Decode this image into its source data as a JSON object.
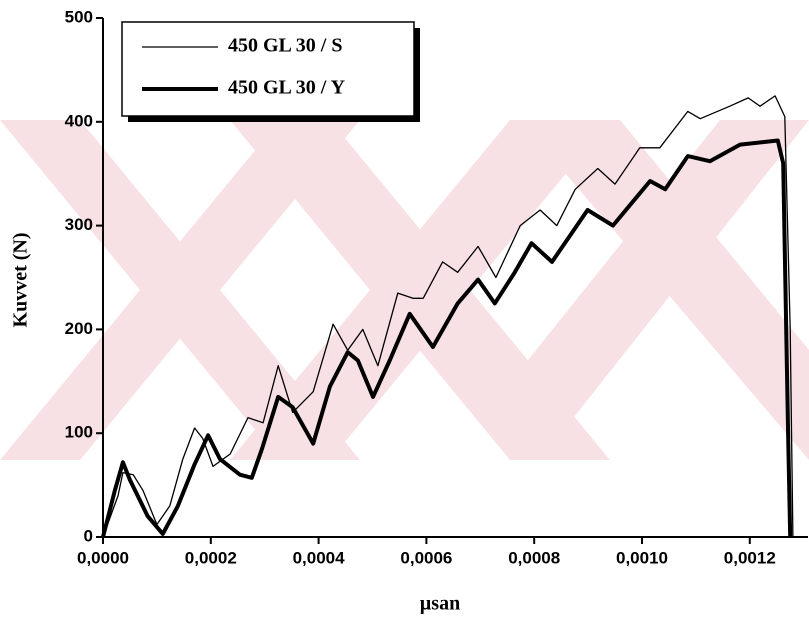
{
  "chart_data": {
    "type": "line",
    "y_label": "Kuvvet (N)",
    "x_label": "µsan",
    "xlim": [
      0,
      0.001308
    ],
    "ylim": [
      0,
      500
    ],
    "xticks": [
      {
        "value": 0,
        "label": "0,0000"
      },
      {
        "value": 0.0002,
        "label": "0,0002"
      },
      {
        "value": 0.0004,
        "label": "0,0004"
      },
      {
        "value": 0.0006,
        "label": "0,0006"
      },
      {
        "value": 0.0008,
        "label": "0,0008"
      },
      {
        "value": 0.001,
        "label": "0,0010"
      },
      {
        "value": 0.0012,
        "label": "0,0012"
      }
    ],
    "yticks": [
      0,
      100,
      200,
      300,
      400,
      500
    ],
    "legend": "top-left",
    "series": [
      {
        "name": "450 GL 30 / S",
        "color": "#000000",
        "width": 1.3,
        "x": [
          0,
          2.8e-05,
          3.7e-05,
          5.6e-05,
          7.4e-05,
          0.0001,
          0.000124,
          0.000148,
          0.00017,
          0.000185,
          0.000204,
          0.000236,
          0.000269,
          0.000297,
          0.000325,
          0.000352,
          0.00039,
          0.000427,
          0.000454,
          0.000482,
          0.00051,
          0.000547,
          0.000575,
          0.000594,
          0.00063,
          0.000658,
          0.000696,
          0.000729,
          0.000774,
          0.000811,
          0.000842,
          0.000876,
          0.000918,
          0.00095,
          0.000996,
          0.001033,
          0.001085,
          0.001108,
          0.001163,
          0.001197,
          0.001219,
          0.001247,
          0.001265,
          0.001275,
          0.00128
        ],
        "values": [
          0,
          40,
          62,
          60,
          45,
          12,
          30,
          75,
          105,
          95,
          68,
          80,
          115,
          110,
          165,
          120,
          140,
          205,
          180,
          200,
          165,
          235,
          230,
          230,
          265,
          255,
          280,
          250,
          300,
          315,
          300,
          335,
          355,
          340,
          375,
          375,
          410,
          403,
          415,
          423,
          415,
          425,
          405,
          200,
          0
        ]
      },
      {
        "name": "450 GL 30 / Y",
        "color": "#000000",
        "width": 4,
        "x": [
          0,
          2.2e-05,
          3.7e-05,
          5e-05,
          8.3e-05,
          0.000111,
          0.000139,
          0.00017,
          0.000195,
          0.000217,
          0.000254,
          0.000276,
          0.000295,
          0.000325,
          0.000352,
          0.00039,
          0.000421,
          0.000454,
          0.000473,
          0.000501,
          0.000532,
          0.000569,
          0.000612,
          0.000658,
          0.000696,
          0.000727,
          0.000764,
          0.000795,
          0.000833,
          0.000899,
          0.000946,
          0.001015,
          0.001043,
          0.001085,
          0.001126,
          0.001182,
          0.001252,
          0.001262,
          0.001271,
          0.001275
        ],
        "values": [
          0,
          45,
          72,
          55,
          20,
          3,
          30,
          70,
          98,
          75,
          60,
          57,
          85,
          135,
          125,
          90,
          145,
          178,
          170,
          135,
          170,
          215,
          183,
          225,
          248,
          225,
          255,
          283,
          265,
          315,
          300,
          343,
          335,
          367,
          362,
          378,
          382,
          360,
          100,
          0
        ]
      }
    ]
  }
}
